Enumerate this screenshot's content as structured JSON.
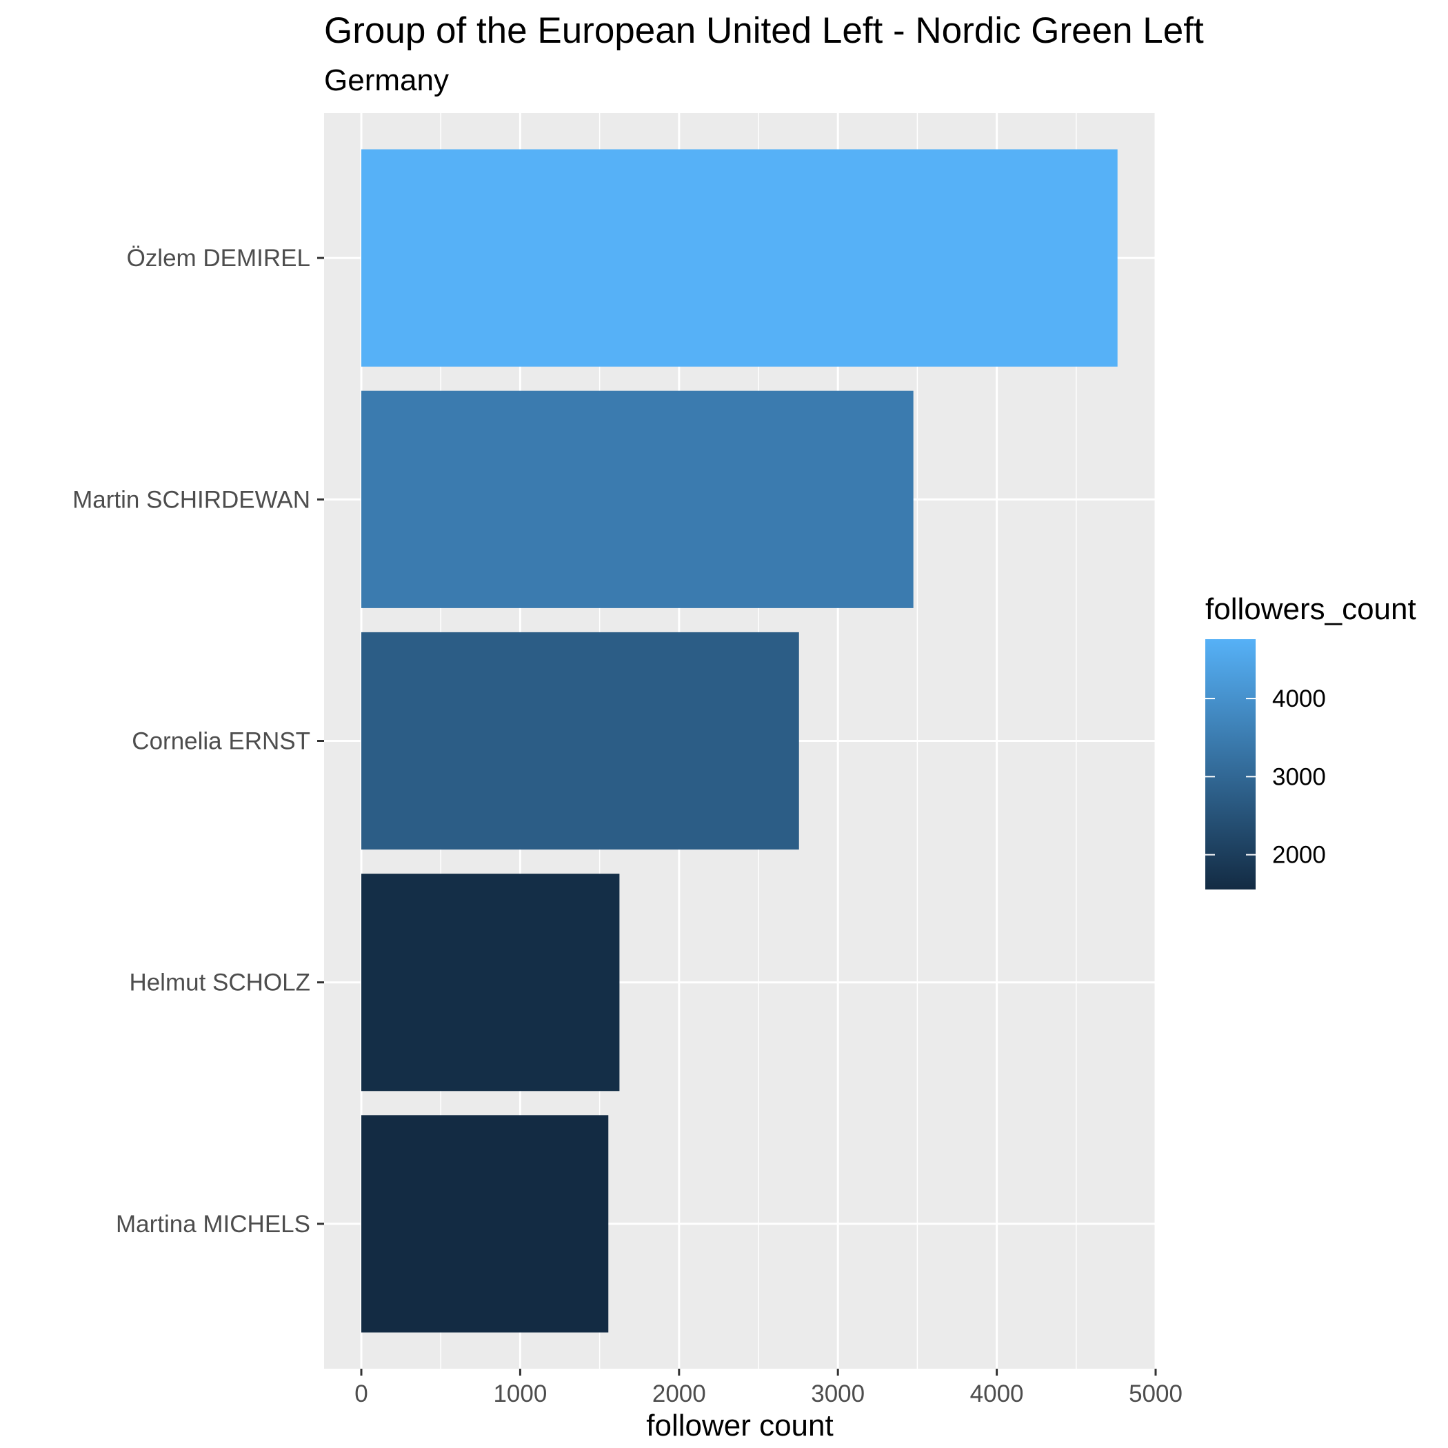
{
  "chart_data": {
    "type": "bar",
    "orientation": "horizontal",
    "title": "Group of the European United Left - Nordic Green Left",
    "subtitle": "Germany",
    "xlabel": "follower count",
    "ylabel": "",
    "xlim": [
      0,
      5000
    ],
    "x_ticks": [
      "0",
      "1000",
      "2000",
      "3000",
      "4000",
      "5000"
    ],
    "categories": [
      "Özlem DEMIREL",
      "Martin SCHIRDEWAN",
      "Cornelia ERNST",
      "Helmut SCHOLZ",
      "Martina MICHELS"
    ],
    "values": [
      4760,
      3475,
      2755,
      1625,
      1555
    ],
    "grid": true,
    "legend": {
      "title": "followers_count",
      "placement": "right",
      "type": "gradient",
      "range": [
        1555,
        4760
      ],
      "breaks": [
        2000,
        3000,
        4000
      ],
      "labels": [
        "2000",
        "3000",
        "4000"
      ],
      "low_color": "#132B43",
      "high_color": "#56B1F7"
    },
    "panel_background": "#EBEBEB",
    "grid_color": "#FFFFFF"
  }
}
